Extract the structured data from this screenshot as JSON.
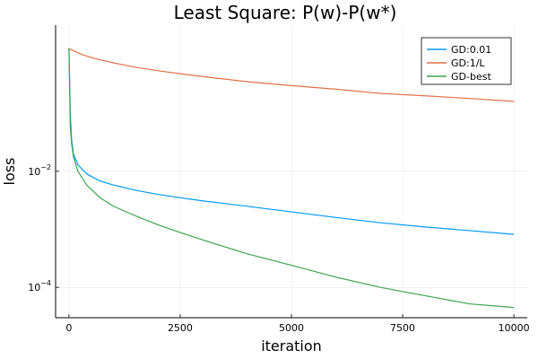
{
  "chart_data": {
    "type": "line",
    "title": "Least Square: P(w)-P(w*)",
    "xlabel": "iteration",
    "ylabel": "loss",
    "xlim": [
      -300,
      10300
    ],
    "ylim": [
      3e-05,
      3.3
    ],
    "yscale": "log",
    "grid": true,
    "legend_position": "top-right",
    "x_ticks": [
      0,
      2500,
      5000,
      7500,
      10000
    ],
    "x_tick_labels": [
      "0",
      "2500",
      "5000",
      "7500",
      "10000"
    ],
    "y_ticks": [
      0.0001,
      0.01
    ],
    "y_tick_labels": [
      {
        "base": "10",
        "exp": "−4"
      },
      {
        "base": "10",
        "exp": "−2"
      }
    ],
    "series": [
      {
        "name": "GD:0.01",
        "color": "#009AF9",
        "points": [
          [
            0,
            1.3
          ],
          [
            10,
            0.6
          ],
          [
            30,
            0.1
          ],
          [
            60,
            0.035
          ],
          [
            100,
            0.02
          ],
          [
            200,
            0.013
          ],
          [
            400,
            0.009
          ],
          [
            700,
            0.0068
          ],
          [
            1000,
            0.0058
          ],
          [
            1500,
            0.0047
          ],
          [
            2000,
            0.004
          ],
          [
            2500,
            0.0035
          ],
          [
            3000,
            0.0031
          ],
          [
            4000,
            0.0025
          ],
          [
            5000,
            0.002
          ],
          [
            6000,
            0.0016
          ],
          [
            7000,
            0.0013
          ],
          [
            8000,
            0.0011
          ],
          [
            9000,
            0.00095
          ],
          [
            10000,
            0.00082
          ]
        ]
      },
      {
        "name": "GD:1/L",
        "color": "#E26F46",
        "points": [
          [
            0,
            1.3
          ],
          [
            100,
            1.2
          ],
          [
            300,
            1.02
          ],
          [
            600,
            0.87
          ],
          [
            1000,
            0.74
          ],
          [
            1500,
            0.62
          ],
          [
            2000,
            0.54
          ],
          [
            2500,
            0.48
          ],
          [
            3000,
            0.43
          ],
          [
            4000,
            0.35
          ],
          [
            5000,
            0.3
          ],
          [
            6000,
            0.26
          ],
          [
            7000,
            0.22
          ],
          [
            8000,
            0.2
          ],
          [
            9000,
            0.18
          ],
          [
            10000,
            0.16
          ]
        ]
      },
      {
        "name": "GD-best",
        "color": "#3DA44D",
        "points": [
          [
            0,
            1.3
          ],
          [
            10,
            0.5
          ],
          [
            30,
            0.06
          ],
          [
            60,
            0.03
          ],
          [
            100,
            0.018
          ],
          [
            200,
            0.01
          ],
          [
            400,
            0.0058
          ],
          [
            700,
            0.0035
          ],
          [
            1000,
            0.0025
          ],
          [
            1500,
            0.0017
          ],
          [
            2000,
            0.0012
          ],
          [
            2500,
            0.00088
          ],
          [
            3000,
            0.00066
          ],
          [
            4000,
            0.00038
          ],
          [
            5000,
            0.00024
          ],
          [
            6000,
            0.00015
          ],
          [
            7000,
            0.0001
          ],
          [
            8000,
            7.2e-05
          ],
          [
            9000,
            5.2e-05
          ],
          [
            10000,
            4.5e-05
          ]
        ]
      }
    ]
  }
}
